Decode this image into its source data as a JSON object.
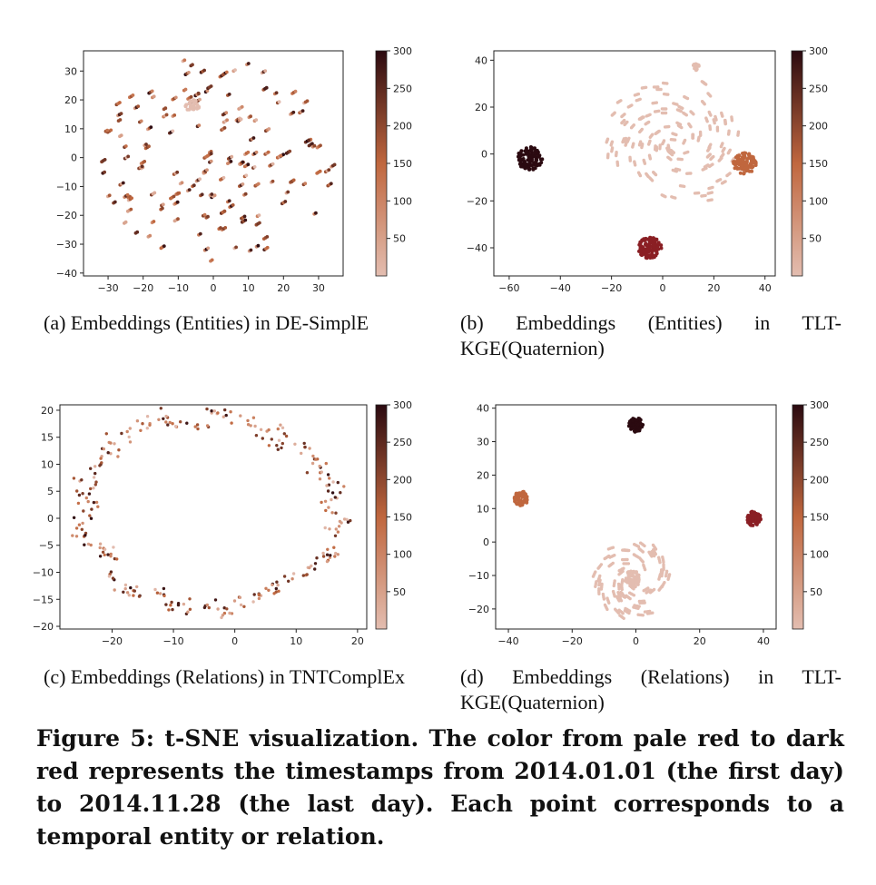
{
  "figure_caption": "Figure 5: t-SNE visualization. The color from pale red to dark red represents the timestamps from 2014.01.01 (the first day) to 2014.11.28 (the last day). Each point corresponds to a temporal entity or relation.",
  "colors": {
    "low": "#e3bdb0",
    "mid": "#c0673e",
    "high": "#2b0a10"
  },
  "chart_data": [
    {
      "id": "a",
      "type": "scatter",
      "caption": "(a) Embeddings (Entities) in DE-SimplE",
      "xlim": [
        -37,
        37
      ],
      "ylim": [
        -41,
        37
      ],
      "xticks": [
        -30,
        -20,
        -10,
        0,
        10,
        20,
        30
      ],
      "yticks": [
        -40,
        -30,
        -20,
        -10,
        0,
        10,
        20,
        30
      ],
      "colorbar": {
        "range": [
          0,
          300
        ],
        "ticks": [
          50,
          100,
          150,
          200,
          250,
          300
        ]
      },
      "clusters": [
        {
          "cx": -6,
          "cy": 18,
          "r": 2,
          "n": 30,
          "color": "low"
        }
      ],
      "scatter_style": "uniform-disk pairs of points, mixed colors",
      "scatter_area": {
        "cx": 0,
        "cy": -1,
        "r": 34,
        "n": 150
      }
    },
    {
      "id": "b",
      "type": "scatter",
      "caption": "(b) Embeddings (Entities) in TLT-KGE(Quaternion)",
      "xlim": [
        -66,
        44
      ],
      "ylim": [
        -52,
        44
      ],
      "xticks": [
        -60,
        -40,
        -20,
        0,
        20,
        40
      ],
      "yticks": [
        -40,
        -20,
        0,
        20,
        40
      ],
      "colorbar": {
        "range": [
          0,
          300
        ],
        "ticks": [
          50,
          100,
          150,
          200,
          250,
          300
        ]
      },
      "clusters": [
        {
          "cx": -52,
          "cy": -2,
          "r": 5,
          "n": 110,
          "color": "high"
        },
        {
          "cx": -5,
          "cy": -40,
          "r": 4.5,
          "n": 110,
          "color": "#8a1f24"
        },
        {
          "cx": 32,
          "cy": -4,
          "r": 4.5,
          "n": 110,
          "color": "mid"
        },
        {
          "cx": 13,
          "cy": 37,
          "r": 1.5,
          "n": 20,
          "color": "low"
        }
      ],
      "scatter_area": {
        "cx": 5,
        "cy": 5,
        "r": 28,
        "n": 120,
        "color": "low"
      }
    },
    {
      "id": "c",
      "type": "scatter",
      "caption": "(c) Embeddings (Relations) in TNTComplEx",
      "xlim": [
        -28.5,
        21.5
      ],
      "ylim": [
        -20.5,
        21
      ],
      "xticks": [
        -20,
        -10,
        0,
        10,
        20
      ],
      "yticks": [
        -20,
        -15,
        -10,
        -5,
        0,
        5,
        10,
        15,
        20
      ],
      "colorbar": {
        "range": [
          0,
          300
        ],
        "ticks": [
          50,
          100,
          150,
          200,
          250,
          300
        ]
      },
      "scatter_style": "small groups of points arranged around a ring"
    },
    {
      "id": "d",
      "type": "scatter",
      "caption": "(d) Embeddings (Relations) in TLT-KGE(Quaternion)",
      "xlim": [
        -44,
        44
      ],
      "ylim": [
        -26,
        41
      ],
      "xticks": [
        -40,
        -20,
        0,
        20,
        40
      ],
      "yticks": [
        -20,
        -10,
        0,
        10,
        20,
        30,
        40
      ],
      "colorbar": {
        "range": [
          0,
          300
        ],
        "ticks": [
          50,
          100,
          150,
          200,
          250,
          300
        ]
      },
      "clusters": [
        {
          "cx": 0,
          "cy": 35,
          "r": 2.2,
          "n": 70,
          "color": "high"
        },
        {
          "cx": -36,
          "cy": 13,
          "r": 2.2,
          "n": 70,
          "color": "mid"
        },
        {
          "cx": 37,
          "cy": 7,
          "r": 2.2,
          "n": 70,
          "color": "#8a1f24"
        },
        {
          "cx": -1,
          "cy": -11,
          "r": 2.5,
          "n": 50,
          "color": "low"
        }
      ],
      "scatter_area": {
        "cx": -1,
        "cy": -11,
        "r": 12,
        "n": 70,
        "color": "low"
      }
    }
  ]
}
